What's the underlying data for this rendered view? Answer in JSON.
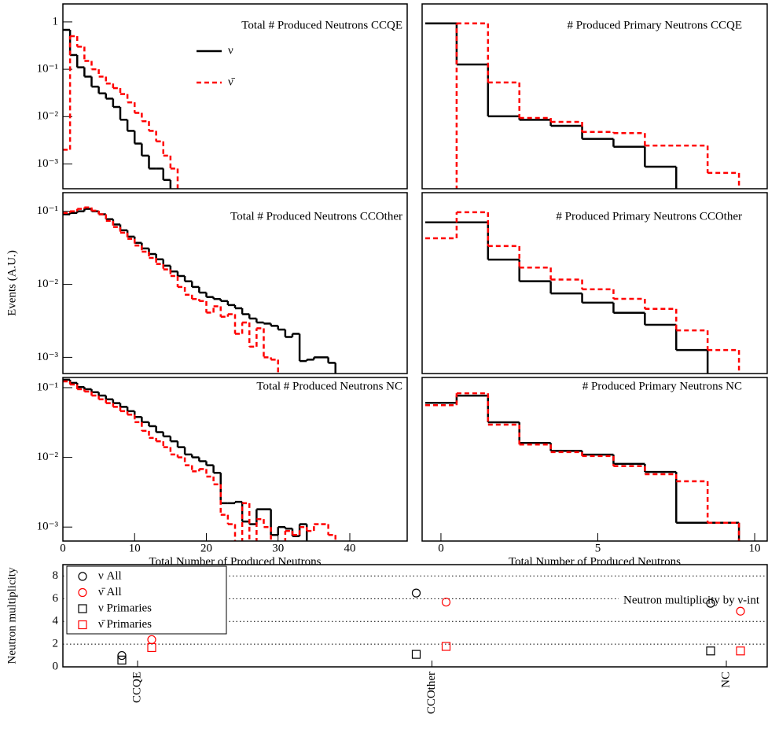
{
  "chart_data": [
    {
      "type": "histogram",
      "title": "Total # Produced Neutrons CCQE",
      "log_y": true,
      "legend": "top-center",
      "bins": [
        0,
        1,
        2,
        3,
        4,
        5,
        6,
        7,
        8,
        9,
        10,
        11,
        12,
        13,
        14,
        15,
        16,
        17,
        18,
        19,
        20,
        21,
        22,
        23,
        24,
        25,
        26,
        27,
        28,
        29,
        30,
        31,
        32,
        33,
        34,
        35,
        36,
        37,
        38,
        39,
        40,
        41,
        42,
        43,
        44,
        45,
        46,
        47,
        48
      ],
      "xlim": [
        0,
        48
      ],
      "ylim": [
        0.0003,
        2.4
      ],
      "yticks": [
        1,
        {
          "value": 0.1,
          "label": "10⁻¹"
        },
        {
          "value": 0.01,
          "label": "10⁻²"
        },
        {
          "value": 0.001,
          "label": "10⁻³"
        }
      ],
      "series": [
        {
          "name": "ν",
          "color": "#000000",
          "linestyle": "solid",
          "values": [
            0.68,
            0.2,
            0.11,
            0.07,
            0.043,
            0.031,
            0.024,
            0.016,
            0.0086,
            0.005,
            0.0027,
            0.0015,
            0.0008,
            0.0008,
            0.00046,
            0,
            0,
            0,
            0,
            0,
            0,
            0,
            0,
            0,
            0,
            0,
            0,
            0,
            0,
            0,
            0,
            0,
            0,
            0,
            0,
            0,
            0,
            0,
            0,
            0,
            0,
            0,
            0,
            0,
            0,
            0,
            0,
            0
          ]
        },
        {
          "name": "ν̄",
          "color": "#ff0000",
          "linestyle": "dashed",
          "values": [
            0.002,
            0.5,
            0.3,
            0.15,
            0.1,
            0.07,
            0.05,
            0.04,
            0.03,
            0.02,
            0.012,
            0.008,
            0.005,
            0.003,
            0.0015,
            0.0008,
            0,
            0,
            0,
            0,
            0,
            0,
            0,
            0,
            0,
            0,
            0,
            0,
            0,
            0,
            0,
            0,
            0,
            0,
            0,
            0,
            0,
            0,
            0,
            0,
            0,
            0,
            0,
            0,
            0,
            0,
            0,
            0
          ]
        }
      ]
    },
    {
      "type": "histogram",
      "title": "# Produced Primary Neutrons CCQE",
      "log_y": true,
      "bins": [
        -0.5,
        0.5,
        1.5,
        2.5,
        3.5,
        4.5,
        5.5,
        6.5,
        7.5,
        8.5,
        9.5,
        10.5
      ],
      "xlim": [
        -0.6,
        10.4
      ],
      "ylim": [
        0.0001,
        1
      ],
      "series": [
        {
          "color": "#000000",
          "linestyle": "solid",
          "values": [
            0.38,
            0.049,
            0.0037,
            0.0031,
            0.0023,
            0.0012,
            0.00081,
            0.0003,
            0,
            0,
            0
          ]
        },
        {
          "color": "#ff0000",
          "linestyle": "dashed",
          "values": [
            0,
            0.38,
            0.02,
            0.0034,
            0.0028,
            0.0017,
            0.0016,
            0.00086,
            0.00086,
            0.00022,
            0
          ]
        }
      ]
    },
    {
      "type": "histogram",
      "title": "Total # Produced Neutrons CCOther",
      "log_y": true,
      "ylabel": "Events (A.U.)",
      "bins": [
        0,
        1,
        2,
        3,
        4,
        5,
        6,
        7,
        8,
        9,
        10,
        11,
        12,
        13,
        14,
        15,
        16,
        17,
        18,
        19,
        20,
        21,
        22,
        23,
        24,
        25,
        26,
        27,
        28,
        29,
        30,
        31,
        32,
        33,
        34,
        35,
        36,
        37,
        38,
        39,
        40,
        41,
        42,
        43,
        44,
        45,
        46,
        47,
        48
      ],
      "xlim": [
        0,
        48
      ],
      "ylim": [
        0.0006,
        0.18
      ],
      "yticks": [
        {
          "value": 0.1,
          "label": "10⁻¹"
        },
        {
          "value": 0.01,
          "label": "10⁻²"
        },
        {
          "value": 0.001,
          "label": "10⁻³"
        }
      ],
      "series": [
        {
          "color": "#000000",
          "linestyle": "solid",
          "values": [
            0.091,
            0.095,
            0.1,
            0.108,
            0.1,
            0.091,
            0.078,
            0.066,
            0.055,
            0.045,
            0.037,
            0.031,
            0.026,
            0.022,
            0.018,
            0.015,
            0.013,
            0.011,
            0.0092,
            0.0077,
            0.0067,
            0.0063,
            0.0059,
            0.0052,
            0.0047,
            0.0039,
            0.0034,
            0.003,
            0.0029,
            0.0027,
            0.0024,
            0.0019,
            0.0021,
            0.00089,
            0.00093,
            0.001,
            0.001,
            0.00084,
            0,
            0,
            0,
            0,
            0,
            0,
            0,
            0,
            0,
            0
          ]
        },
        {
          "color": "#ff0000",
          "linestyle": "dashed",
          "values": [
            0.095,
            0.1,
            0.108,
            0.113,
            0.102,
            0.091,
            0.074,
            0.061,
            0.051,
            0.042,
            0.034,
            0.028,
            0.023,
            0.019,
            0.016,
            0.013,
            0.0092,
            0.0072,
            0.0063,
            0.0059,
            0.0041,
            0.005,
            0.0036,
            0.0039,
            0.0021,
            0.003,
            0.0014,
            0.0025,
            0.001,
            0.00093,
            0,
            0,
            0,
            0,
            0,
            0,
            0,
            0,
            0,
            0,
            0,
            0,
            0,
            0,
            0,
            0,
            0,
            0
          ]
        }
      ]
    },
    {
      "type": "histogram",
      "title": "# Produced Primary Neutrons CCOther",
      "log_y": true,
      "bins": [
        -0.5,
        0.5,
        1.5,
        2.5,
        3.5,
        4.5,
        5.5,
        6.5,
        7.5,
        8.5,
        9.5,
        10.5
      ],
      "xlim": [
        -0.6,
        10.4
      ],
      "ylim": [
        0.0001,
        1
      ],
      "series": [
        {
          "color": "#000000",
          "linestyle": "solid",
          "values": [
            0.22,
            0.22,
            0.033,
            0.011,
            0.0059,
            0.0037,
            0.0022,
            0.0012,
            0.00033,
            0,
            0
          ]
        },
        {
          "color": "#ff0000",
          "linestyle": "dashed",
          "values": [
            0.098,
            0.37,
            0.066,
            0.022,
            0.012,
            0.0073,
            0.0045,
            0.0027,
            0.0009,
            0.00033,
            0
          ]
        }
      ]
    },
    {
      "type": "histogram",
      "title": "Total # Produced Neutrons NC",
      "log_y": true,
      "xlabel": "Total Number of Produced Neutrons",
      "bins": [
        0,
        1,
        2,
        3,
        4,
        5,
        6,
        7,
        8,
        9,
        10,
        11,
        12,
        13,
        14,
        15,
        16,
        17,
        18,
        19,
        20,
        21,
        22,
        23,
        24,
        25,
        26,
        27,
        28,
        29,
        30,
        31,
        32,
        33,
        34,
        35,
        36,
        37,
        38,
        39,
        40,
        41,
        42,
        43,
        44,
        45,
        46,
        47,
        48
      ],
      "xlim": [
        0,
        48
      ],
      "ylim": [
        0.00063,
        0.14
      ],
      "xticks": [
        0,
        10,
        20,
        30,
        40
      ],
      "yticks": [
        {
          "value": 0.1,
          "label": "10⁻¹"
        },
        {
          "value": 0.01,
          "label": "10⁻²"
        },
        {
          "value": 0.001,
          "label": "10⁻³"
        }
      ],
      "series": [
        {
          "color": "#000000",
          "linestyle": "solid",
          "values": [
            0.13,
            0.117,
            0.102,
            0.095,
            0.086,
            0.077,
            0.068,
            0.06,
            0.053,
            0.046,
            0.038,
            0.032,
            0.028,
            0.023,
            0.02,
            0.017,
            0.014,
            0.011,
            0.01,
            0.0088,
            0.0077,
            0.006,
            0.0022,
            0.0022,
            0.0023,
            0.0012,
            0.0011,
            0.0018,
            0.0018,
            0.00077,
            0.001,
            0.00095,
            0.00074,
            0.0011,
            0,
            0,
            0,
            0,
            0,
            0,
            0,
            0,
            0,
            0,
            0,
            0,
            0,
            0
          ]
        },
        {
          "color": "#ff0000",
          "linestyle": "dashed",
          "values": [
            0.123,
            0.111,
            0.095,
            0.088,
            0.077,
            0.068,
            0.06,
            0.053,
            0.046,
            0.041,
            0.032,
            0.024,
            0.019,
            0.017,
            0.014,
            0.011,
            0.01,
            0.0077,
            0.0063,
            0.0068,
            0.0053,
            0.0041,
            0.0015,
            0.0011,
            0,
            0.0022,
            0,
            0.0013,
            0.001,
            0,
            0,
            0.00088,
            0.00077,
            0.001,
            0.00088,
            0.0011,
            0.0011,
            0.00077,
            0,
            0,
            0,
            0,
            0,
            0,
            0,
            0,
            0,
            0
          ]
        }
      ]
    },
    {
      "type": "histogram",
      "title": "# Produced Primary Neutrons NC",
      "log_y": true,
      "xlabel": "Total Number of Produced Neutrons",
      "bins": [
        -0.5,
        0.5,
        1.5,
        2.5,
        3.5,
        4.5,
        5.5,
        6.5,
        7.5,
        8.5,
        9.5,
        10.5
      ],
      "xlim": [
        -0.6,
        10.4
      ],
      "ylim": [
        0.0001,
        1
      ],
      "xticks": [
        0,
        5,
        10
      ],
      "series": [
        {
          "color": "#000000",
          "linestyle": "solid",
          "values": [
            0.24,
            0.36,
            0.08,
            0.025,
            0.016,
            0.013,
            0.0077,
            0.0049,
            0.00028,
            0.00028,
            0
          ]
        },
        {
          "color": "#ff0000",
          "linestyle": "dashed",
          "values": [
            0.21,
            0.41,
            0.07,
            0.023,
            0.015,
            0.012,
            0.0068,
            0.0043,
            0.0029,
            0.00028,
            0
          ]
        }
      ]
    },
    {
      "type": "dot",
      "title": "Neutron multiplicity by ν-int",
      "ylabel": "Neutron multiplicity",
      "legend": "top-left",
      "grid": true,
      "categories": [
        "CCQE",
        "CCOther",
        "NC"
      ],
      "ylim": [
        0,
        9
      ],
      "yticks": [
        0,
        2,
        4,
        6,
        8
      ],
      "series": [
        {
          "name": "ν All",
          "color": "#000000",
          "marker": "circle",
          "values": [
            1.0,
            6.5,
            5.6
          ]
        },
        {
          "name": "ν̄ All",
          "color": "#ff0000",
          "marker": "circle",
          "values": [
            2.4,
            5.7,
            4.9
          ]
        },
        {
          "name": "ν Primaries",
          "color": "#000000",
          "marker": "square",
          "values": [
            0.6,
            1.1,
            1.4
          ]
        },
        {
          "name": "ν̄ Primaries",
          "color": "#ff0000",
          "marker": "square",
          "values": [
            1.7,
            1.8,
            1.4
          ]
        }
      ]
    }
  ]
}
